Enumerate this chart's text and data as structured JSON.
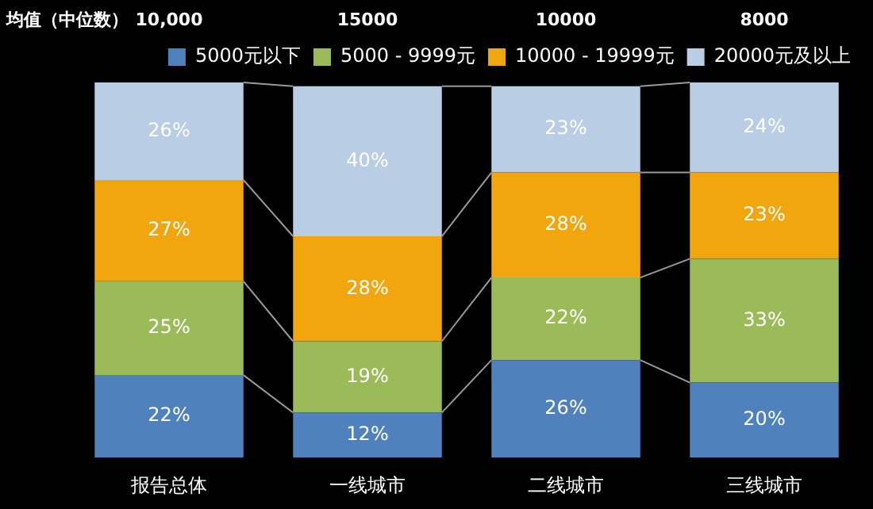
{
  "chart_data": {
    "type": "bar",
    "stacked": true,
    "legend": "top right",
    "tick_labels": "x",
    "categories": [
      "报告总体",
      "一线城市",
      "二线城市",
      "三线城市"
    ],
    "series": [
      {
        "name": "5000元以下",
        "color": "#4f81bd",
        "values": [
          22,
          12,
          26,
          20
        ],
        "value_labels": [
          "22%",
          "12%",
          "26%",
          "20%"
        ]
      },
      {
        "name": "5000 - 9999元",
        "color": "#9bbb59",
        "values": [
          25,
          19,
          22,
          33
        ],
        "value_labels": [
          "25%",
          "19%",
          "22%",
          "33%"
        ]
      },
      {
        "name": "10000 - 19999元",
        "color": "#f2a60d",
        "values": [
          27,
          28,
          28,
          23
        ],
        "value_labels": [
          "27%",
          "28%",
          "28%",
          "23%"
        ]
      },
      {
        "name": "20000元及以上",
        "color": "#b9cde5",
        "values": [
          26,
          40,
          23,
          24
        ],
        "value_labels": [
          "26%",
          "40%",
          "23%",
          "24%"
        ]
      }
    ],
    "annotations": [
      "均值（中位数）",
      "10,000",
      "15000",
      "10000",
      "8000"
    ]
  }
}
